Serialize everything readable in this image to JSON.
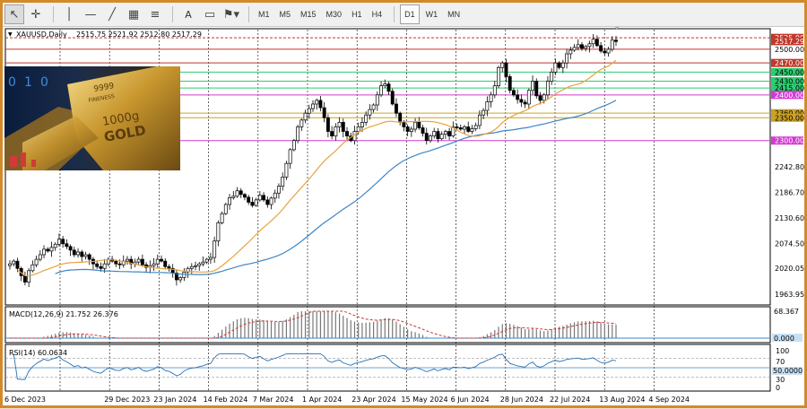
{
  "toolbar": {
    "timeframes": [
      "M1",
      "M5",
      "M15",
      "M30",
      "H1",
      "H4",
      "D1",
      "W1",
      "MN"
    ],
    "active_timeframe": "D1"
  },
  "header": {
    "symbol": "XAUUSD,Daily",
    "ohlc": "2515.75 2521.92 2512.80 2517.29"
  },
  "image_overlay": {
    "text_lines": [
      "9999",
      "FINENESS",
      "1000g",
      "GOLD"
    ],
    "left_digits": [
      "0",
      "1",
      "0"
    ]
  },
  "price_axis": {
    "labels": [
      "2525.00",
      "2517.29",
      "2500.00",
      "2470.00",
      "2450.00",
      "2430.00",
      "2415.00",
      "2400.00",
      "2360.00",
      "2350.00",
      "2300.00",
      "2242.80",
      "2186.70",
      "2130.60",
      "2074.50",
      "2020.05",
      "1963.95"
    ]
  },
  "date_axis": {
    "labels": [
      "6 Dec 2023",
      "29 Dec 2023",
      "23 Jan 2024",
      "14 Feb 2024",
      "7 Mar 2024",
      "1 Apr 2024",
      "23 Apr 2024",
      "15 May 2024",
      "6 Jun 2024",
      "28 Jun 2024",
      "22 Jul 2024",
      "13 Aug 2024",
      "4 Sep 2024"
    ]
  },
  "macd": {
    "label": "MACD(12,26,9) 21.752 26.376",
    "scale_top": "68.367",
    "scale_zero": "0.000"
  },
  "rsi": {
    "label": "RSI(14) 60.0634",
    "scale": [
      "100",
      "70",
      "50.0000",
      "30",
      "0"
    ]
  },
  "colors": {
    "frame": "#d28a2a",
    "bull_candle": "#000000",
    "ma_fast": "#e8a33a",
    "ma_slow": "#3d86c6",
    "level_red": "#c0392b",
    "level_green": "#2ecc71",
    "level_magenta": "#d23bd2",
    "level_gold": "#c9a227",
    "macd_signal": "#cc3333",
    "rsi_line": "#2a6fb0"
  },
  "chart_data": {
    "type": "candlestick",
    "title": "XAUUSD,Daily",
    "ylim": [
      1940,
      2545
    ],
    "horizontal_levels": [
      2525,
      2500,
      2470,
      2450,
      2430,
      2415,
      2400,
      2360,
      2350,
      2300
    ],
    "indicators": [
      "MACD(12,26,9)",
      "RSI(14)"
    ],
    "close_series": [
      2030,
      2036,
      2020,
      2004,
      1990,
      2015,
      2028,
      2040,
      2050,
      2062,
      2058,
      2066,
      2073,
      2084,
      2074,
      2068,
      2060,
      2050,
      2056,
      2046,
      2050,
      2040,
      2030,
      2024,
      2020,
      2030,
      2040,
      2036,
      2030,
      2028,
      2036,
      2040,
      2030,
      2034,
      2040,
      2028,
      2022,
      2026,
      2030,
      2040,
      2036,
      2024,
      2020,
      2010,
      1995,
      2000,
      2012,
      2020,
      2024,
      2026,
      2030,
      2034,
      2040,
      2044,
      2080,
      2120,
      2140,
      2160,
      2175,
      2178,
      2190,
      2182,
      2176,
      2165,
      2158,
      2170,
      2180,
      2170,
      2160,
      2174,
      2185,
      2200,
      2220,
      2250,
      2280,
      2300,
      2330,
      2345,
      2360,
      2370,
      2380,
      2388,
      2372,
      2350,
      2320,
      2310,
      2330,
      2340,
      2320,
      2310,
      2300,
      2320,
      2330,
      2340,
      2356,
      2368,
      2378,
      2400,
      2420,
      2424,
      2408,
      2380,
      2360,
      2340,
      2330,
      2320,
      2325,
      2340,
      2328,
      2316,
      2300,
      2310,
      2320,
      2304,
      2314,
      2320,
      2310,
      2330,
      2328,
      2325,
      2330,
      2320,
      2326,
      2333,
      2356,
      2366,
      2385,
      2400,
      2420,
      2460,
      2470,
      2440,
      2410,
      2400,
      2390,
      2384,
      2380,
      2410,
      2430,
      2398,
      2388,
      2400,
      2430,
      2450,
      2470,
      2460,
      2470,
      2490,
      2498,
      2504,
      2510,
      2502,
      2506,
      2512,
      2522,
      2508,
      2496,
      2492,
      2500,
      2520,
      2517
    ]
  }
}
